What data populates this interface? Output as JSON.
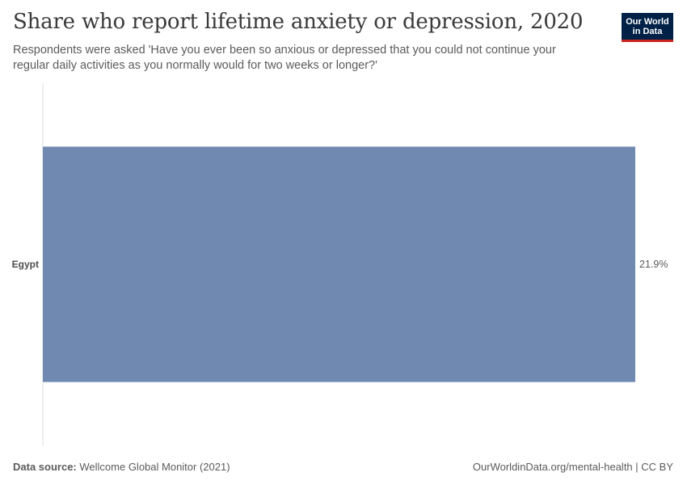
{
  "header": {
    "title": "Share who report lifetime anxiety or depression, 2020",
    "subtitle": "Respondents were asked 'Have you ever been so anxious or depressed that you could not continue your regular daily activities as you normally would for two weeks or longer?'"
  },
  "logo": {
    "line1": "Our World",
    "line2": "in Data",
    "background_color": "#002147",
    "accent_color": "#ce261e"
  },
  "chart_data": {
    "type": "bar",
    "orientation": "horizontal",
    "categories": [
      "Egypt"
    ],
    "values": [
      21.9
    ],
    "value_labels": [
      "21.9%"
    ],
    "unit": "%",
    "xlim": [
      0,
      21.9
    ],
    "bar_color": "#6f89b0",
    "grid": false,
    "title": "Share who report lifetime anxiety or depression, 2020",
    "xlabel": "",
    "ylabel": ""
  },
  "footer": {
    "source_label": "Data source:",
    "source_text": "Wellcome Global Monitor (2021)",
    "url_license": "OurWorldinData.org/mental-health | CC BY"
  }
}
